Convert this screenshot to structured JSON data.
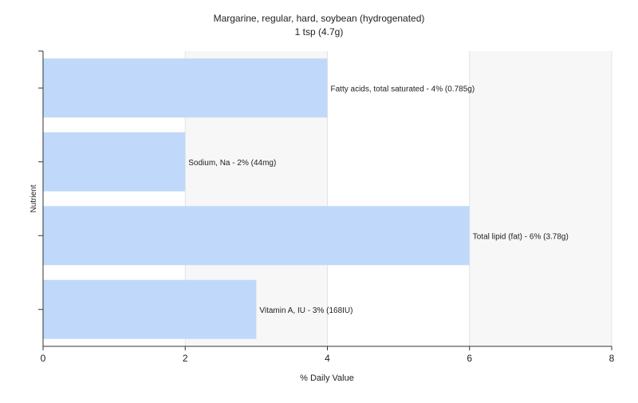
{
  "chart_data": {
    "type": "bar",
    "orientation": "horizontal",
    "title": "Margarine, regular, hard, soybean (hydrogenated)",
    "subtitle": "1 tsp (4.7g)",
    "xlabel": "% Daily Value",
    "ylabel": "Nutrient",
    "xlim": [
      0,
      8
    ],
    "xticks": [
      "0",
      "2",
      "4",
      "6",
      "8"
    ],
    "grid": true,
    "bar_color": "#c0d9fb",
    "categories": [
      "Fatty acids, total saturated",
      "Sodium, Na",
      "Total lipid (fat)",
      "Vitamin A, IU"
    ],
    "values": [
      4,
      2,
      6,
      3
    ],
    "labels": [
      "Fatty acids, total saturated - 4% (0.785g)",
      "Sodium, Na - 2% (44mg)",
      "Total lipid (fat) - 6% (3.78g)",
      "Vitamin A, IU - 3% (168IU)"
    ]
  }
}
